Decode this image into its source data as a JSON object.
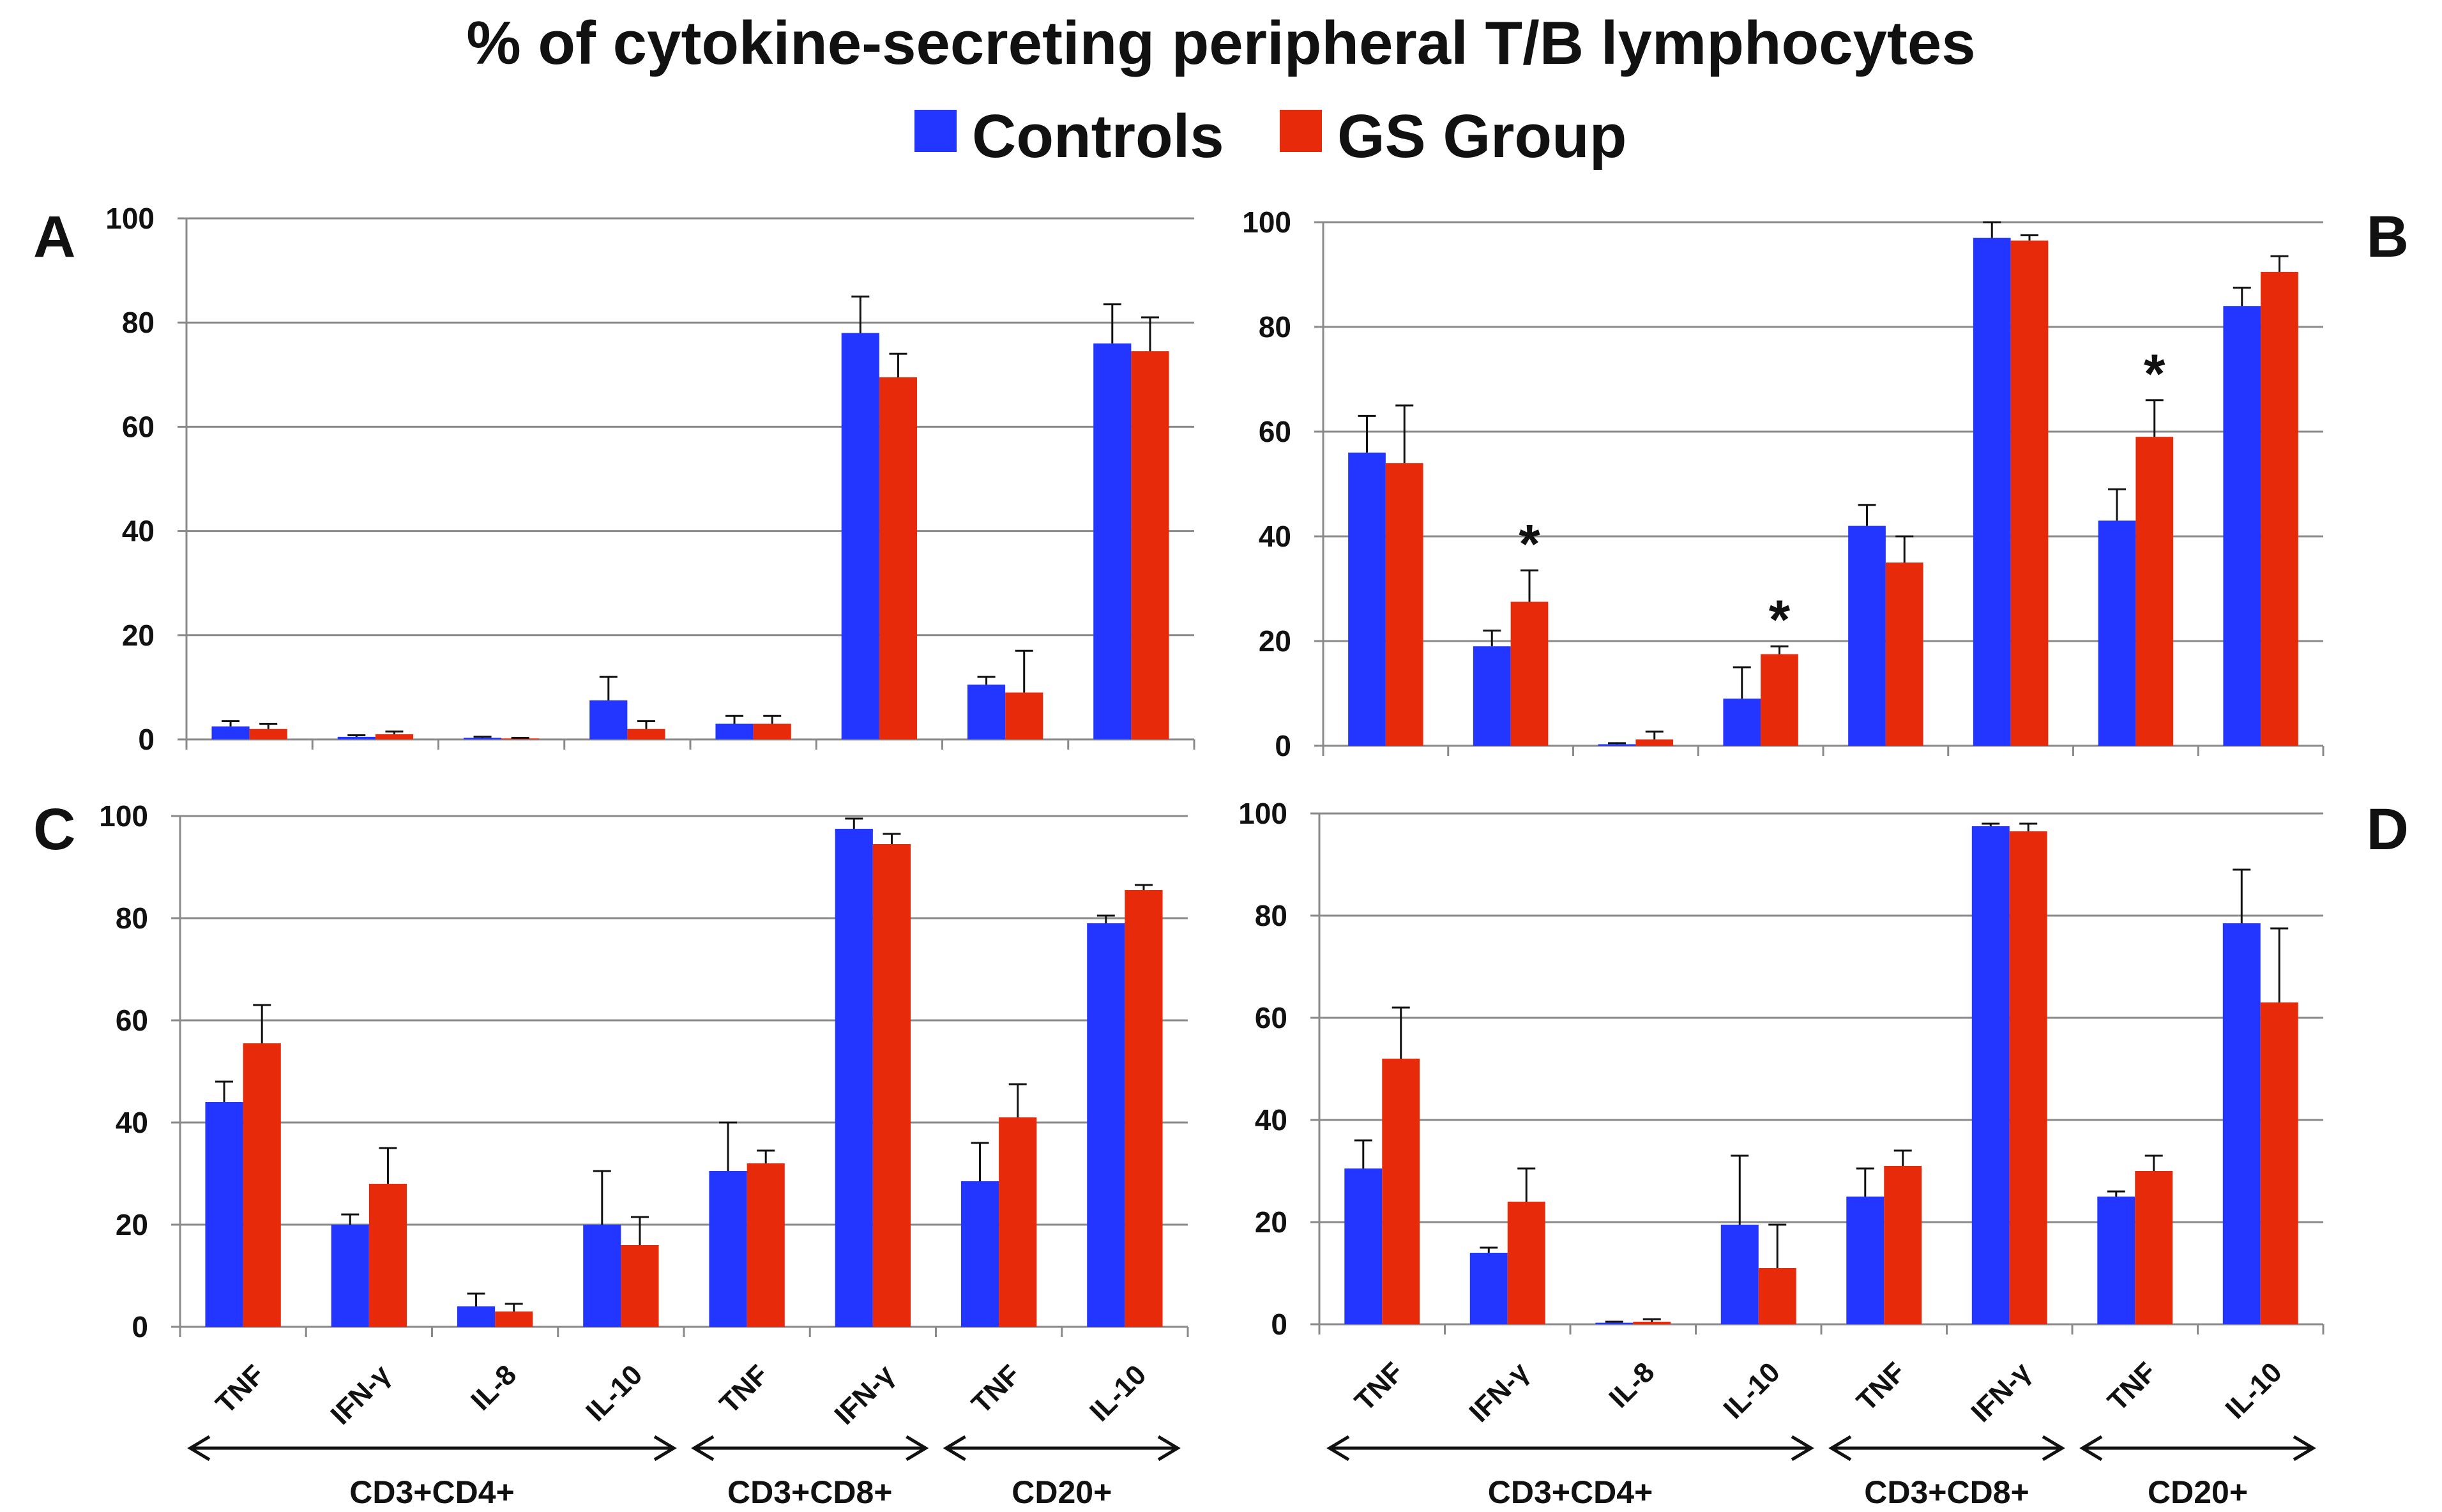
{
  "figure": {
    "title": "% of cytokine-secreting peripheral T/B lymphocytes",
    "legend": [
      {
        "label": "Controls",
        "color": "#2336ff"
      },
      {
        "label": "GS Group",
        "color": "#e62a0a"
      }
    ]
  },
  "chart_data": [
    {
      "type": "bar",
      "panel": "A",
      "categories": [
        "TNF",
        "IFN-γ",
        "IL-8",
        "IL-10",
        "TNF",
        "IFN-γ",
        "TNF",
        "IL-10"
      ],
      "groups": [
        {
          "label": "CD3+CD4+",
          "count": 4
        },
        {
          "label": "CD3+CD8+",
          "count": 2
        },
        {
          "label": "CD20+",
          "count": 2
        }
      ],
      "ylim": [
        0,
        100
      ],
      "yticks": [
        0,
        20,
        40,
        60,
        80,
        100
      ],
      "series": [
        {
          "name": "Controls",
          "values": [
            2.5,
            0.5,
            0.3,
            7.5,
            3,
            78,
            10.5,
            76
          ],
          "errors": [
            1,
            0.3,
            0.2,
            4.5,
            1.5,
            7,
            1.5,
            7.5
          ]
        },
        {
          "name": "GS Group",
          "values": [
            2,
            1,
            0.2,
            2,
            3,
            69.5,
            9,
            74.5
          ],
          "errors": [
            1,
            0.5,
            0.1,
            1.5,
            1.5,
            4.5,
            8,
            6.5
          ]
        }
      ],
      "significance": []
    },
    {
      "type": "bar",
      "panel": "B",
      "categories": [
        "TNF",
        "IFN-γ",
        "IL-8",
        "IL-10",
        "TNF",
        "IFN-γ",
        "TNF",
        "IL-10"
      ],
      "groups": [
        {
          "label": "CD3+CD4+",
          "count": 4
        },
        {
          "label": "CD3+CD8+",
          "count": 2
        },
        {
          "label": "CD20+",
          "count": 2
        }
      ],
      "ylim": [
        0,
        100
      ],
      "yticks": [
        0,
        20,
        40,
        60,
        80,
        100
      ],
      "series": [
        {
          "name": "Controls",
          "values": [
            56,
            19,
            0.3,
            9,
            42,
            97,
            43,
            84
          ],
          "errors": [
            7,
            3,
            0.2,
            6,
            4,
            3,
            6,
            3.5
          ]
        },
        {
          "name": "GS Group",
          "values": [
            54,
            27.5,
            1.2,
            17.5,
            35,
            96.5,
            59,
            90.5
          ],
          "errors": [
            11,
            6,
            1.5,
            1.5,
            5,
            1,
            7,
            3
          ]
        }
      ],
      "significance": [
        {
          "category_index": 1,
          "label": "*"
        },
        {
          "category_index": 3,
          "label": "*"
        },
        {
          "category_index": 6,
          "label": "*"
        }
      ]
    },
    {
      "type": "bar",
      "panel": "C",
      "categories": [
        "TNF",
        "IFN-γ",
        "IL-8",
        "IL-10",
        "TNF",
        "IFN-γ",
        "TNF",
        "IL-10"
      ],
      "groups": [
        {
          "label": "CD3+CD4+",
          "count": 4
        },
        {
          "label": "CD3+CD8+",
          "count": 2
        },
        {
          "label": "CD20+",
          "count": 2
        }
      ],
      "ylim": [
        0,
        100
      ],
      "yticks": [
        0,
        20,
        40,
        60,
        80,
        100
      ],
      "series": [
        {
          "name": "Controls",
          "values": [
            44,
            20,
            4,
            20,
            30.5,
            97.5,
            28.5,
            79
          ],
          "errors": [
            4,
            2,
            2.5,
            10.5,
            9.5,
            2,
            7.5,
            1.5
          ]
        },
        {
          "name": "GS Group",
          "values": [
            55.5,
            28,
            3,
            16,
            32,
            94.5,
            41,
            85.5
          ],
          "errors": [
            7.5,
            7,
            1.5,
            5.5,
            2.5,
            2,
            6.5,
            1
          ]
        }
      ],
      "significance": []
    },
    {
      "type": "bar",
      "panel": "D",
      "categories": [
        "TNF",
        "IFN-γ",
        "IL-8",
        "IL-10",
        "TNF",
        "IFN-γ",
        "TNF",
        "IL-10"
      ],
      "groups": [
        {
          "label": "CD3+CD4+",
          "count": 4
        },
        {
          "label": "CD3+CD8+",
          "count": 2
        },
        {
          "label": "CD20+",
          "count": 2
        }
      ],
      "ylim": [
        0,
        100
      ],
      "yticks": [
        0,
        20,
        40,
        60,
        80,
        100
      ],
      "series": [
        {
          "name": "Controls",
          "values": [
            30.5,
            14,
            0.3,
            19.5,
            25,
            97.5,
            25,
            78.5
          ],
          "errors": [
            5.5,
            1,
            0.2,
            13.5,
            5.5,
            0.5,
            1,
            10.5
          ]
        },
        {
          "name": "GS Group",
          "values": [
            52,
            24,
            0.5,
            11,
            31,
            96.5,
            30,
            63
          ],
          "errors": [
            10,
            6.5,
            0.5,
            8.5,
            3,
            1.5,
            3,
            14.5
          ]
        }
      ],
      "significance": []
    }
  ]
}
